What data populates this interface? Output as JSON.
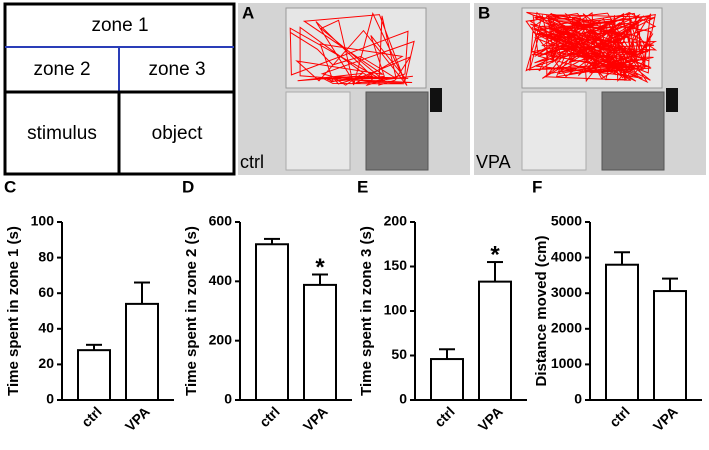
{
  "diagram": {
    "cells": [
      "zone 1",
      "zone 2",
      "zone 3",
      "stimulus",
      "object"
    ]
  },
  "photos": [
    {
      "label": "A",
      "caption": "ctrl"
    },
    {
      "label": "B",
      "caption": "VPA"
    }
  ],
  "chart_data": [
    {
      "type": "bar",
      "label": "C",
      "y_label": "Time spent in zone 1 (s)",
      "categories": [
        "ctrl",
        "VPA"
      ],
      "values": [
        28,
        54
      ],
      "errors": [
        3,
        12
      ],
      "significance": [
        null,
        null
      ],
      "color": "#ffffff",
      "ylim": [
        0,
        100
      ],
      "yticks": [
        0,
        20,
        40,
        60,
        80,
        100
      ]
    },
    {
      "type": "bar",
      "label": "D",
      "y_label": "Time spent in zone 2 (s)",
      "categories": [
        "ctrl",
        "VPA"
      ],
      "values": [
        525,
        388
      ],
      "errors": [
        18,
        35
      ],
      "significance": [
        null,
        "*"
      ],
      "color": "#ffffff",
      "ylim": [
        0,
        600
      ],
      "yticks": [
        0,
        200,
        400,
        600
      ]
    },
    {
      "type": "bar",
      "label": "E",
      "y_label": "Time spent in zone 3 (s)",
      "categories": [
        "ctrl",
        "VPA"
      ],
      "values": [
        46,
        133
      ],
      "errors": [
        11,
        22
      ],
      "significance": [
        null,
        "*"
      ],
      "color": "#ffffff",
      "ylim": [
        0,
        200
      ],
      "yticks": [
        0,
        50,
        100,
        150,
        200
      ]
    },
    {
      "type": "bar",
      "label": "F",
      "y_label": "Distance moved (cm)",
      "categories": [
        "ctrl",
        "VPA"
      ],
      "values": [
        3800,
        3060
      ],
      "errors": [
        350,
        350
      ],
      "significance": [
        null,
        null
      ],
      "color": "#ffffff",
      "ylim": [
        0,
        5000
      ],
      "yticks": [
        0,
        1000,
        2000,
        3000,
        4000,
        5000
      ]
    }
  ]
}
